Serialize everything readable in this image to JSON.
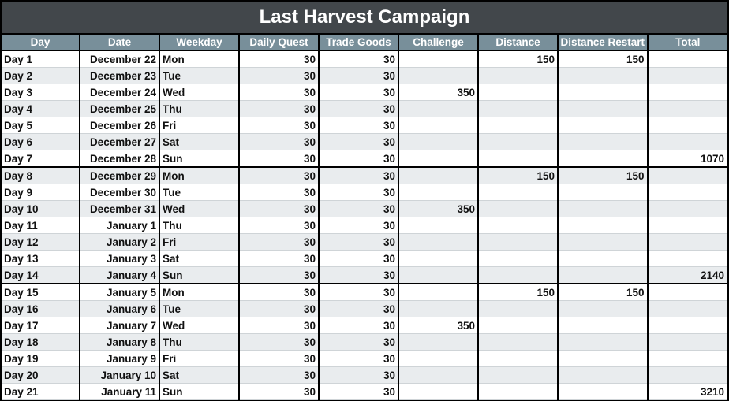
{
  "title": "Last Harvest Campaign",
  "columns": [
    "Day",
    "Date",
    "Weekday",
    "Daily Quest",
    "Trade Goods",
    "Challenge",
    "Distance",
    "Distance Restart",
    "Total"
  ],
  "rows": [
    [
      "Day 1",
      "December 22",
      "Mon",
      "30",
      "30",
      "",
      "150",
      "150",
      ""
    ],
    [
      "Day 2",
      "December 23",
      "Tue",
      "30",
      "30",
      "",
      "",
      "",
      ""
    ],
    [
      "Day 3",
      "December 24",
      "Wed",
      "30",
      "30",
      "350",
      "",
      "",
      ""
    ],
    [
      "Day 4",
      "December 25",
      "Thu",
      "30",
      "30",
      "",
      "",
      "",
      ""
    ],
    [
      "Day 5",
      "December 26",
      "Fri",
      "30",
      "30",
      "",
      "",
      "",
      ""
    ],
    [
      "Day 6",
      "December 27",
      "Sat",
      "30",
      "30",
      "",
      "",
      "",
      ""
    ],
    [
      "Day 7",
      "December 28",
      "Sun",
      "30",
      "30",
      "",
      "",
      "",
      "1070"
    ],
    [
      "Day 8",
      "December 29",
      "Mon",
      "30",
      "30",
      "",
      "150",
      "150",
      ""
    ],
    [
      "Day 9",
      "December 30",
      "Tue",
      "30",
      "30",
      "",
      "",
      "",
      ""
    ],
    [
      "Day 10",
      "December 31",
      "Wed",
      "30",
      "30",
      "350",
      "",
      "",
      ""
    ],
    [
      "Day 11",
      "January 1",
      "Thu",
      "30",
      "30",
      "",
      "",
      "",
      ""
    ],
    [
      "Day 12",
      "January 2",
      "Fri",
      "30",
      "30",
      "",
      "",
      "",
      ""
    ],
    [
      "Day 13",
      "January 3",
      "Sat",
      "30",
      "30",
      "",
      "",
      "",
      ""
    ],
    [
      "Day 14",
      "January 4",
      "Sun",
      "30",
      "30",
      "",
      "",
      "",
      "2140"
    ],
    [
      "Day 15",
      "January 5",
      "Mon",
      "30",
      "30",
      "",
      "150",
      "150",
      ""
    ],
    [
      "Day 16",
      "January 6",
      "Tue",
      "30",
      "30",
      "",
      "",
      "",
      ""
    ],
    [
      "Day 17",
      "January 7",
      "Wed",
      "30",
      "30",
      "350",
      "",
      "",
      ""
    ],
    [
      "Day 18",
      "January 8",
      "Thu",
      "30",
      "30",
      "",
      "",
      "",
      ""
    ],
    [
      "Day 19",
      "January 9",
      "Fri",
      "30",
      "30",
      "",
      "",
      "",
      ""
    ],
    [
      "Day 20",
      "January 10",
      "Sat",
      "30",
      "30",
      "",
      "",
      "",
      ""
    ],
    [
      "Day 21",
      "January 11",
      "Sun",
      "30",
      "30",
      "",
      "",
      "",
      "3210"
    ]
  ]
}
